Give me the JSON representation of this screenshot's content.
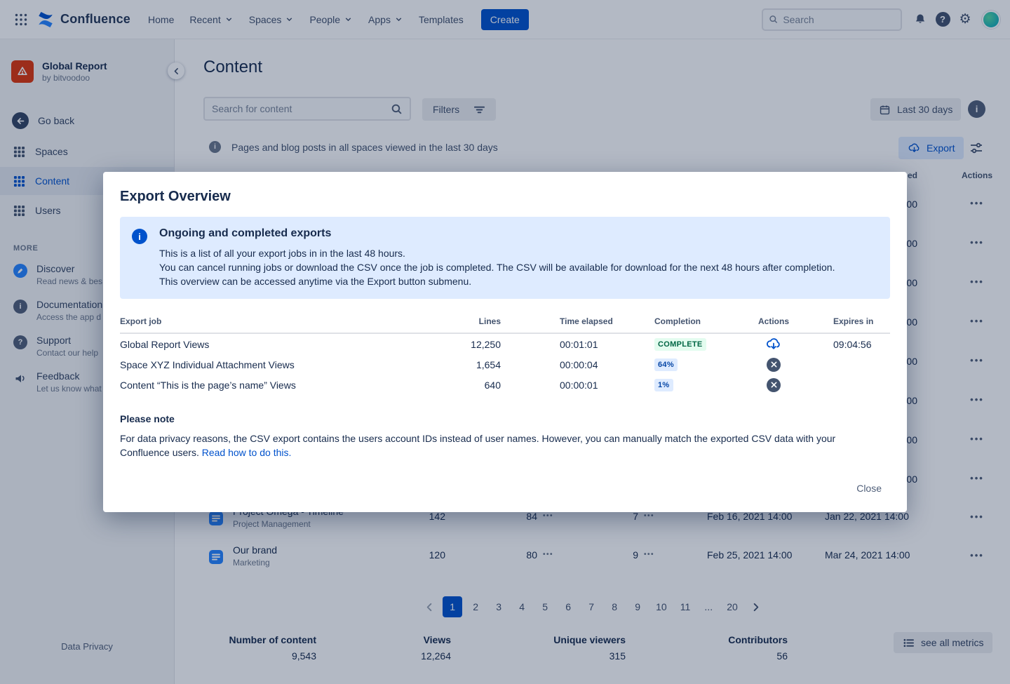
{
  "icons": {
    "help_glyph": "?",
    "info_glyph": "i",
    "gear_glyph": "⚙"
  },
  "topnav": {
    "logo_text": "Confluence",
    "items": [
      {
        "label": "Home"
      },
      {
        "label": "Recent"
      },
      {
        "label": "Spaces"
      },
      {
        "label": "People"
      },
      {
        "label": "Apps"
      },
      {
        "label": "Templates"
      }
    ],
    "create_label": "Create",
    "search_placeholder": "Search"
  },
  "sidebar": {
    "space_title": "Global Report",
    "space_subtitle": "by bitvoodoo",
    "go_back_label": "Go back",
    "nav_items": [
      {
        "label": "Spaces"
      },
      {
        "label": "Content"
      },
      {
        "label": "Users"
      }
    ],
    "more_label": "MORE",
    "more_items": [
      {
        "label": "Discover",
        "sublabel": "Read news & bes"
      },
      {
        "label": "Documentation",
        "sublabel": "Access the app d"
      },
      {
        "label": "Support",
        "sublabel": "Contact our help"
      },
      {
        "label": "Feedback",
        "sublabel": "Let us know what"
      }
    ],
    "data_privacy_label": "Data Privacy"
  },
  "content": {
    "page_title": "Content",
    "search_placeholder": "Search for content",
    "filters_label": "Filters",
    "date_filter_label": "Last 30 days",
    "info_text": "Pages and blog posts in all spaces viewed in the last 30 days",
    "export_label": "Export",
    "table": {
      "header_fragment": "ed",
      "actions_header": "Actions",
      "ellipsis": "•••",
      "hidden_rows": [
        {
          "date_fragment": "00"
        },
        {
          "date_fragment": "00"
        },
        {
          "date_fragment": "00"
        },
        {
          "date_fragment": "00"
        },
        {
          "date_fragment": "00"
        },
        {
          "date_fragment": "00"
        },
        {
          "date_fragment": "00"
        },
        {
          "date_fragment": "00"
        }
      ],
      "rows": [
        {
          "title": "Project Omega - Timeline",
          "space": "Project Management",
          "views": "142",
          "unique": "84",
          "contributors": "7",
          "last_viewed": "Feb 16, 2021 14:00",
          "created": "Jan 22, 2021 14:00"
        },
        {
          "title": "Our brand",
          "space": "Marketing",
          "views": "120",
          "unique": "80",
          "contributors": "9",
          "last_viewed": "Feb 25, 2021 14:00",
          "created": "Mar 24, 2021 14:00"
        }
      ]
    },
    "pagination": {
      "pages": [
        "1",
        "2",
        "3",
        "4",
        "5",
        "6",
        "7",
        "8",
        "9",
        "10",
        "11",
        "...",
        "20"
      ],
      "current": "1"
    },
    "stats": [
      {
        "label": "Number of content",
        "value": "9,543"
      },
      {
        "label": "Views",
        "value": "12,264"
      },
      {
        "label": "Unique viewers",
        "value": "315"
      },
      {
        "label": "Contributors",
        "value": "56"
      }
    ],
    "see_all_metrics_label": "see all metrics"
  },
  "modal": {
    "title": "Export Overview",
    "info_heading": "Ongoing and completed exports",
    "info_lines": [
      "This is a list of all your export jobs in in the last 48 hours.",
      "You can cancel running jobs or download the CSV once the job is completed. The CSV will be available for download for the next 48 hours after completion.",
      "This overview can be accessed anytime via the Export button submenu."
    ],
    "table": {
      "headers": [
        "Export job",
        "Lines",
        "Time elapsed",
        "Completion",
        "Actions",
        "Expires in"
      ],
      "rows": [
        {
          "job": "Global Report Views",
          "lines": "12,250",
          "time": "00:01:01",
          "completion": "COMPLETE",
          "expires": "09:04:56"
        },
        {
          "job": "Space XYZ Individual Attachment Views",
          "lines": "1,654",
          "time": "00:00:04",
          "completion": "64%",
          "expires": ""
        },
        {
          "job": "Content “This is the page’s name” Views",
          "lines": "640",
          "time": "00:00:01",
          "completion": "1%",
          "expires": ""
        }
      ]
    },
    "note_heading": "Please note",
    "note_text": "For data privacy reasons, the CSV export contains the users account IDs instead of user names. However, you can manually match the exported CSV data with your Confluence users.",
    "note_link": "Read how to do this.",
    "close_label": "Close"
  }
}
